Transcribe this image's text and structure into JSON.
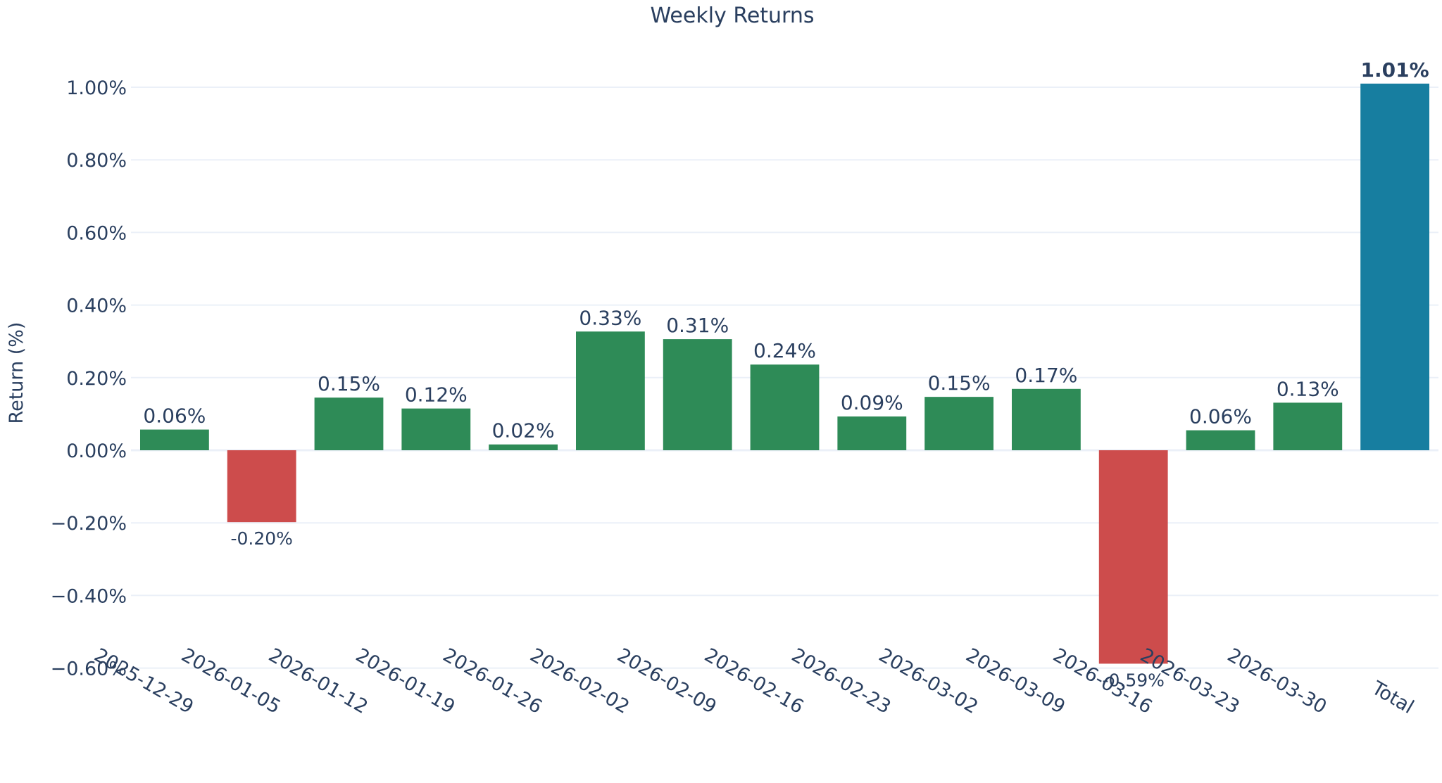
{
  "colors": {
    "positive": "#2e8b57",
    "negative": "#cd4c4c",
    "total": "#177ea0",
    "text": "#2a3f5f",
    "grid": "#ebf0f8"
  },
  "chart_data": {
    "type": "bar",
    "title": "Weekly Returns",
    "xlabel": "",
    "ylabel": "Return (%)",
    "ylim": [
      -0.7,
      1.08
    ],
    "yticks": [
      -0.6,
      -0.4,
      -0.2,
      0.0,
      0.2,
      0.4,
      0.6,
      0.8,
      1.0
    ],
    "ytick_labels": [
      "−0.60%",
      "−0.40%",
      "−0.20%",
      "0.00%",
      "0.20%",
      "0.40%",
      "0.60%",
      "0.80%",
      "1.00%"
    ],
    "grid": true,
    "categories": [
      "2025-12-29",
      "2026-01-05",
      "2026-01-12",
      "2026-01-19",
      "2026-01-26",
      "2026-02-02",
      "2026-02-09",
      "2026-02-16",
      "2026-02-23",
      "2026-03-02",
      "2026-03-09",
      "2026-03-16",
      "2026-03-23",
      "2026-03-30",
      "Total"
    ],
    "values": [
      0.057,
      -0.198,
      0.145,
      0.115,
      0.016,
      0.327,
      0.306,
      0.236,
      0.093,
      0.147,
      0.169,
      -0.588,
      0.055,
      0.131,
      1.01
    ],
    "data_labels": [
      "0.06%",
      "-0.20%",
      "0.15%",
      "0.12%",
      "0.02%",
      "0.33%",
      "0.31%",
      "0.24%",
      "0.09%",
      "0.15%",
      "0.17%",
      "-0.59%",
      "0.06%",
      "0.13%",
      "1.01%"
    ],
    "total_label": "Total"
  }
}
